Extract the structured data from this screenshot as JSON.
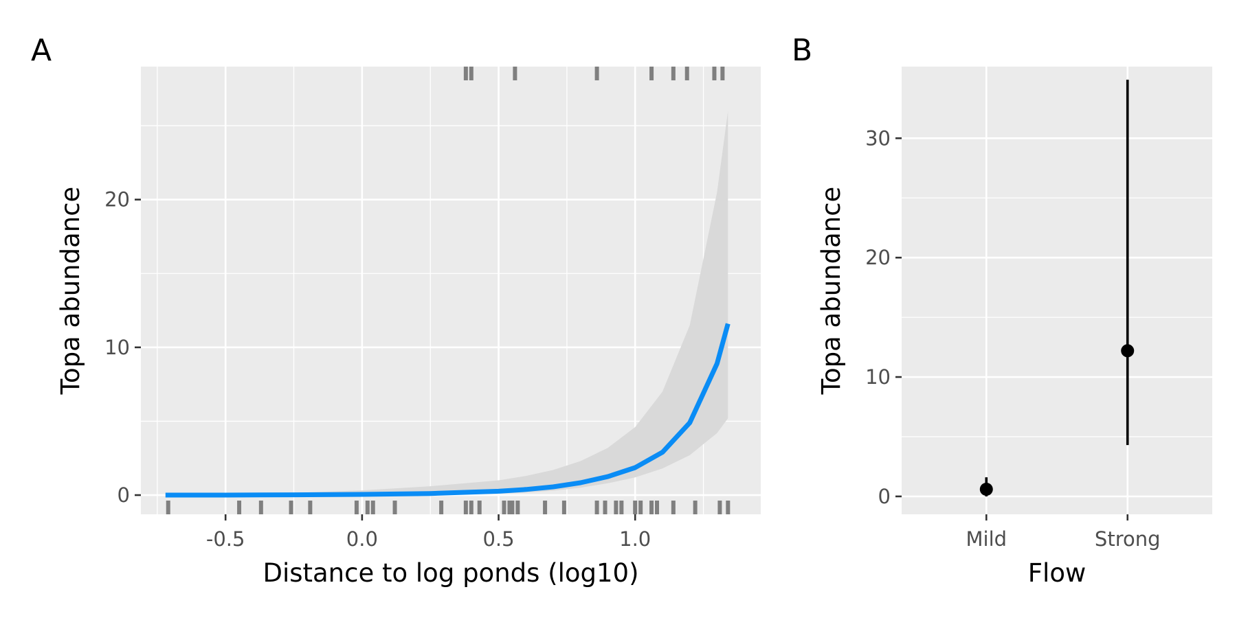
{
  "colors": {
    "panel_bg": "#EBEBEB",
    "grid": "#FFFFFF",
    "fit_line": "#0A8CF5",
    "ribbon": "#D9D9D9",
    "rug": "#7F7F7F",
    "point": "#000000",
    "tick_text": "#4D4D4D"
  },
  "chart_data": [
    {
      "panel_tag": "A",
      "type": "line",
      "title": "",
      "xlabel": "Distance to log ponds (log10)",
      "ylabel": "Topa abundance",
      "xlim": [
        -0.81,
        1.46
      ],
      "ylim": [
        -1.3,
        29.0
      ],
      "x_ticks": [
        -0.5,
        0.0,
        0.5,
        1.0
      ],
      "x_tick_labels": [
        "-0.5",
        "0.0",
        "0.5",
        "1.0"
      ],
      "y_ticks": [
        0,
        10,
        20
      ],
      "y_tick_labels": [
        "0",
        "10",
        "20"
      ],
      "grid": true,
      "series": [
        {
          "x": [
            -0.72,
            -0.5,
            -0.25,
            0.0,
            0.25,
            0.5,
            0.6,
            0.7,
            0.8,
            0.9,
            1.0,
            1.1,
            1.2,
            1.3,
            1.34
          ],
          "y": [
            0.0,
            0.0,
            0.02,
            0.05,
            0.11,
            0.26,
            0.38,
            0.56,
            0.84,
            1.25,
            1.86,
            2.9,
            4.9,
            8.9,
            11.6
          ],
          "ci_lower": [
            0.0,
            0.0,
            0.0,
            0.01,
            0.03,
            0.1,
            0.18,
            0.3,
            0.5,
            0.8,
            1.2,
            1.8,
            2.7,
            4.2,
            5.2
          ],
          "ci_upper": [
            0.02,
            0.06,
            0.15,
            0.32,
            0.6,
            1.0,
            1.3,
            1.7,
            2.3,
            3.2,
            4.6,
            7.0,
            11.5,
            20.5,
            26.0
          ]
        }
      ],
      "rug_top_x": [
        0.38,
        0.4,
        0.56,
        0.86,
        1.06,
        1.14,
        1.19,
        1.29,
        1.32
      ],
      "rug_bottom_x": [
        -0.71,
        -0.45,
        -0.37,
        -0.26,
        -0.19,
        -0.02,
        0.02,
        0.04,
        0.12,
        0.29,
        0.38,
        0.4,
        0.43,
        0.52,
        0.54,
        0.55,
        0.57,
        0.67,
        0.74,
        0.86,
        0.89,
        0.93,
        0.95,
        1.0,
        1.02,
        1.06,
        1.08,
        1.14,
        1.22,
        1.31,
        1.34
      ]
    },
    {
      "panel_tag": "B",
      "type": "scatter",
      "title": "",
      "xlabel": "Flow",
      "ylabel": "Topa abundance",
      "categories": [
        "Mild",
        "Strong"
      ],
      "ylim": [
        -1.5,
        36.0
      ],
      "y_ticks": [
        0,
        10,
        20,
        30
      ],
      "y_tick_labels": [
        "0",
        "10",
        "20",
        "30"
      ],
      "grid": true,
      "points": [
        {
          "category": "Mild",
          "estimate": 0.6,
          "ci_lower": 0.0,
          "ci_upper": 1.6
        },
        {
          "category": "Strong",
          "estimate": 12.2,
          "ci_lower": 4.3,
          "ci_upper": 34.9
        }
      ]
    }
  ]
}
